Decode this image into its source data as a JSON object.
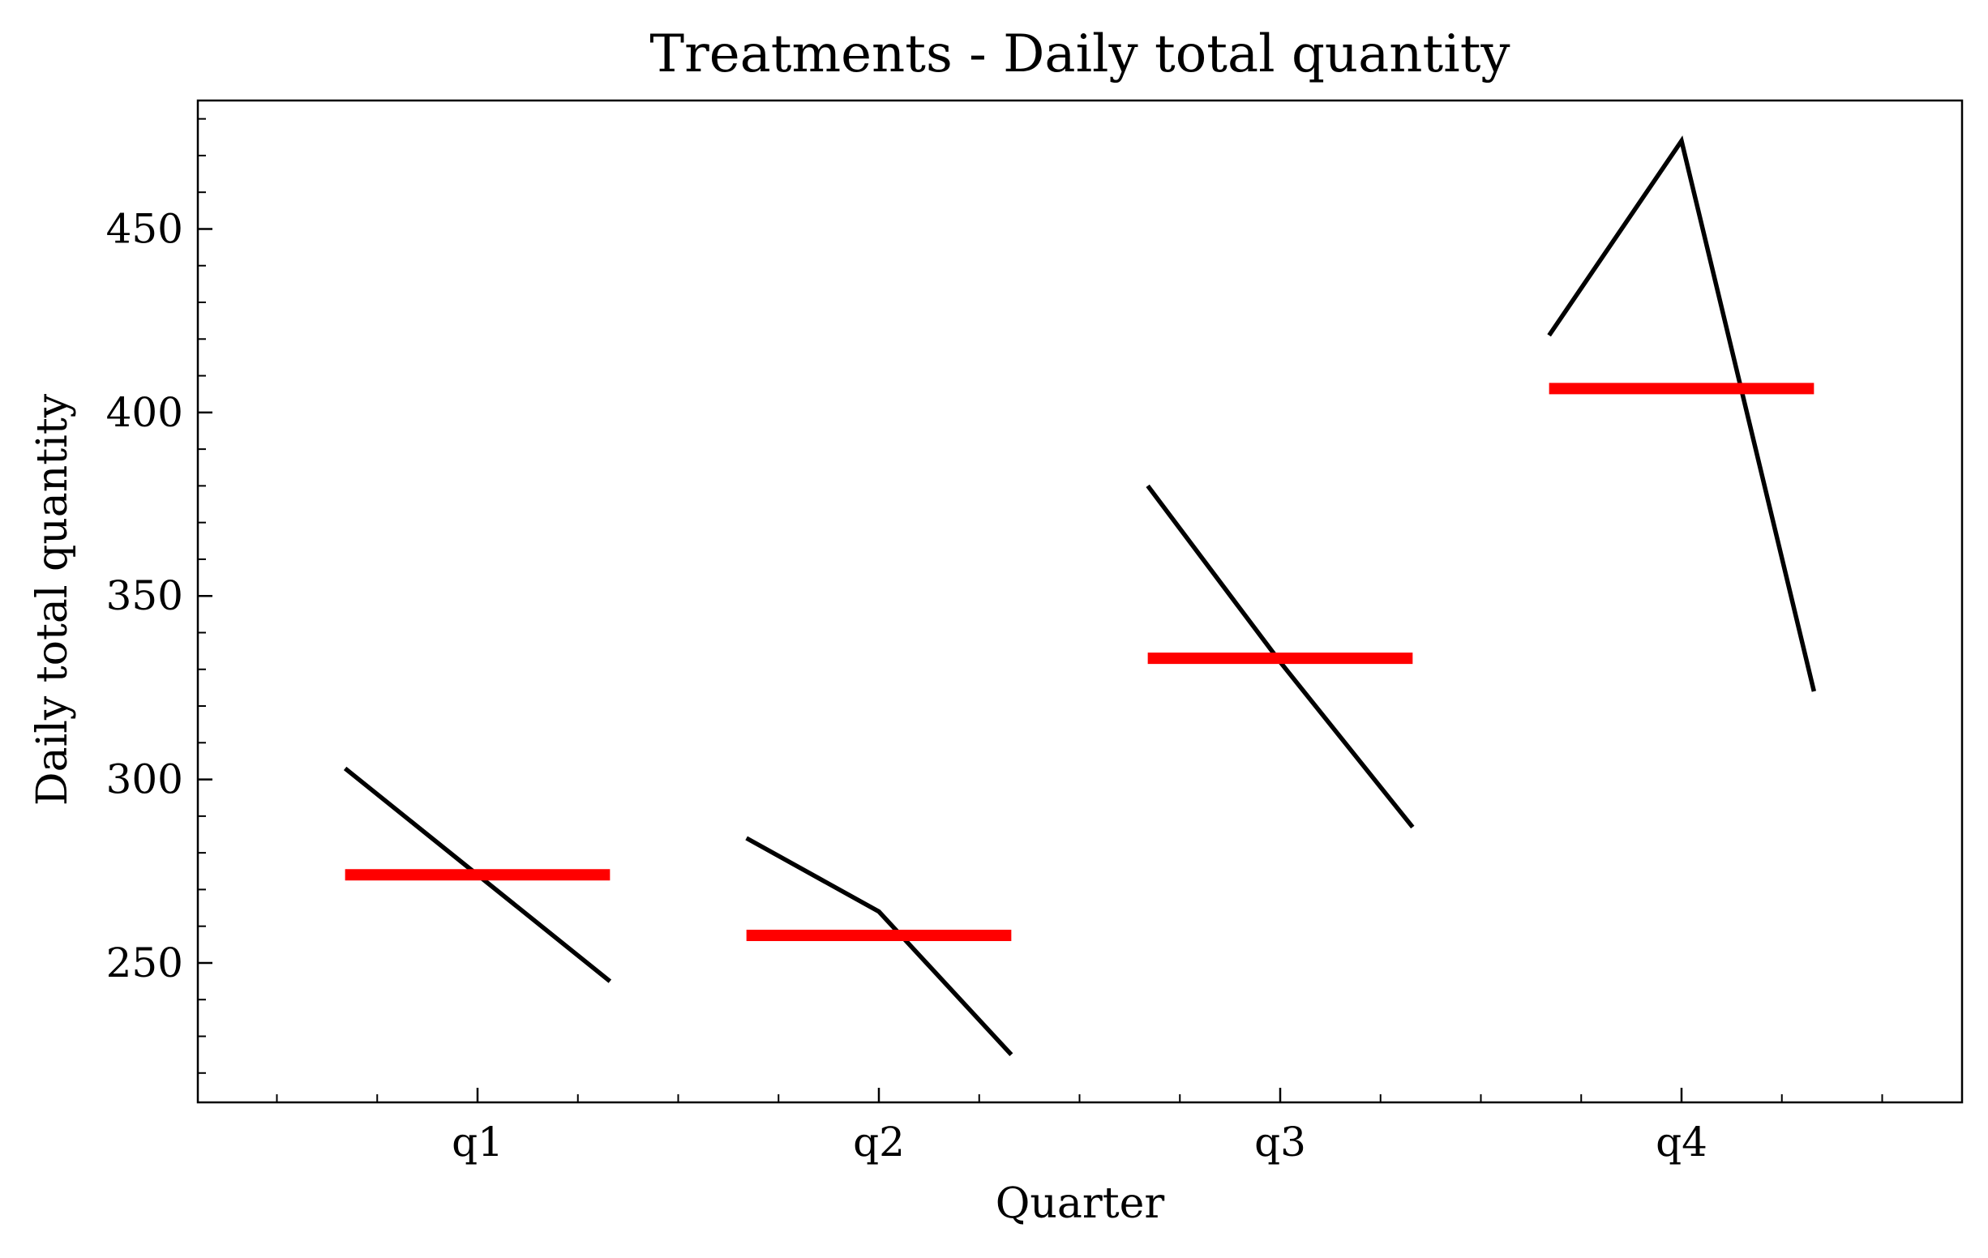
{
  "chart_data": {
    "type": "line",
    "title": "Treatments - Daily total quantity",
    "xlabel": "Quarter",
    "ylabel": "Daily total quantity",
    "categories": [
      "q1",
      "q2",
      "q3",
      "q4"
    ],
    "ylim": [
      212,
      485
    ],
    "yticks": [
      250,
      300,
      350,
      400,
      450
    ],
    "y_minor_step": 10,
    "grid": false,
    "series": [
      {
        "kind": "quarter-trend",
        "color": "#000000",
        "groups": [
          {
            "category": "q1",
            "offsets": [
              -0.33,
              0.0,
              0.33
            ],
            "values": [
              303,
              274,
              245
            ]
          },
          {
            "category": "q2",
            "offsets": [
              -0.33,
              0.0,
              0.33
            ],
            "values": [
              284,
              264,
              225
            ]
          },
          {
            "category": "q3",
            "offsets": [
              -0.33,
              0.0,
              0.33
            ],
            "values": [
              380,
              332,
              287
            ]
          },
          {
            "category": "q4",
            "offsets": [
              -0.33,
              0.0,
              0.33
            ],
            "values": [
              421,
              474,
              324
            ]
          }
        ]
      },
      {
        "kind": "quarter-mean",
        "color": "#ff0000",
        "values": [
          274,
          257.5,
          333,
          406.5
        ]
      }
    ]
  }
}
